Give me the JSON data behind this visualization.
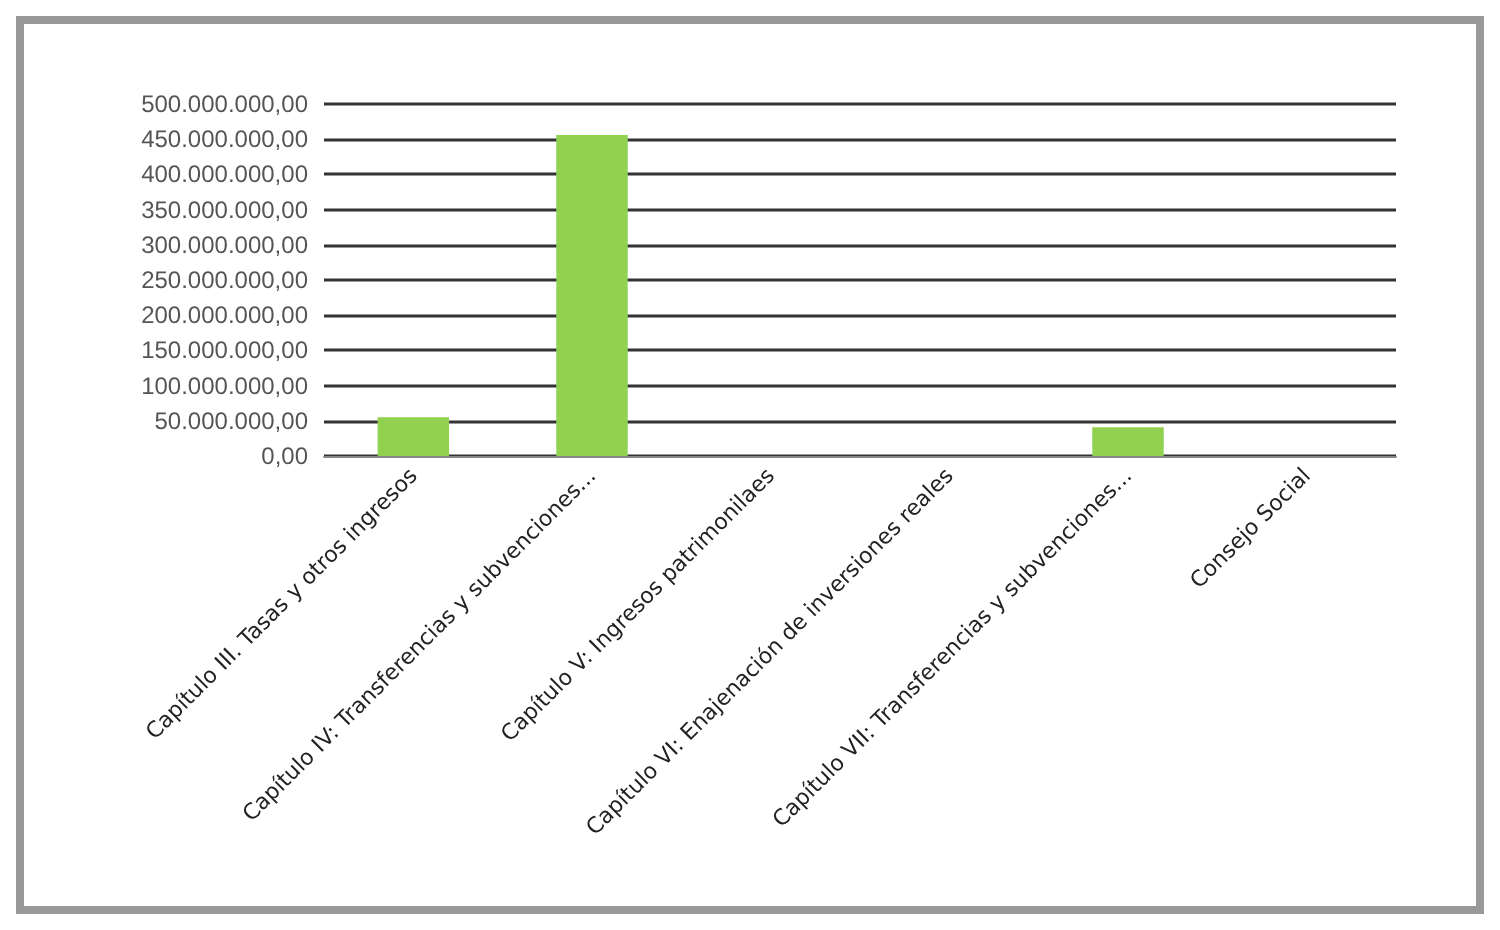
{
  "chart_data": {
    "type": "bar",
    "categories": [
      "Capítulo III. Tasas y otros ingresos",
      "Capítulo IV: Transferencias y subvenciones...",
      "Capítulo V: Ingresos patrimonilaes",
      "Capítulo VI: Enajenación de inversiones reales",
      "Capítulo VII: Transferencias y subvenciones...",
      "Consejo Social"
    ],
    "values": [
      55000000,
      456000000,
      0,
      0,
      41000000,
      0
    ],
    "color": "#92d050",
    "ylim": [
      0,
      500000000
    ],
    "yticks": [
      {
        "value": 0,
        "label": "0,00"
      },
      {
        "value": 50000000,
        "label": "50.000.000,00"
      },
      {
        "value": 100000000,
        "label": "100.000.000,00"
      },
      {
        "value": 150000000,
        "label": "150.000.000,00"
      },
      {
        "value": 200000000,
        "label": "200.000.000,00"
      },
      {
        "value": 250000000,
        "label": "250.000.000,00"
      },
      {
        "value": 300000000,
        "label": "300.000.000,00"
      },
      {
        "value": 350000000,
        "label": "350.000.000,00"
      },
      {
        "value": 400000000,
        "label": "400.000.000,00"
      },
      {
        "value": 450000000,
        "label": "450.000.000,00"
      },
      {
        "value": 500000000,
        "label": "500.000.000,00"
      }
    ],
    "grid": "y"
  }
}
